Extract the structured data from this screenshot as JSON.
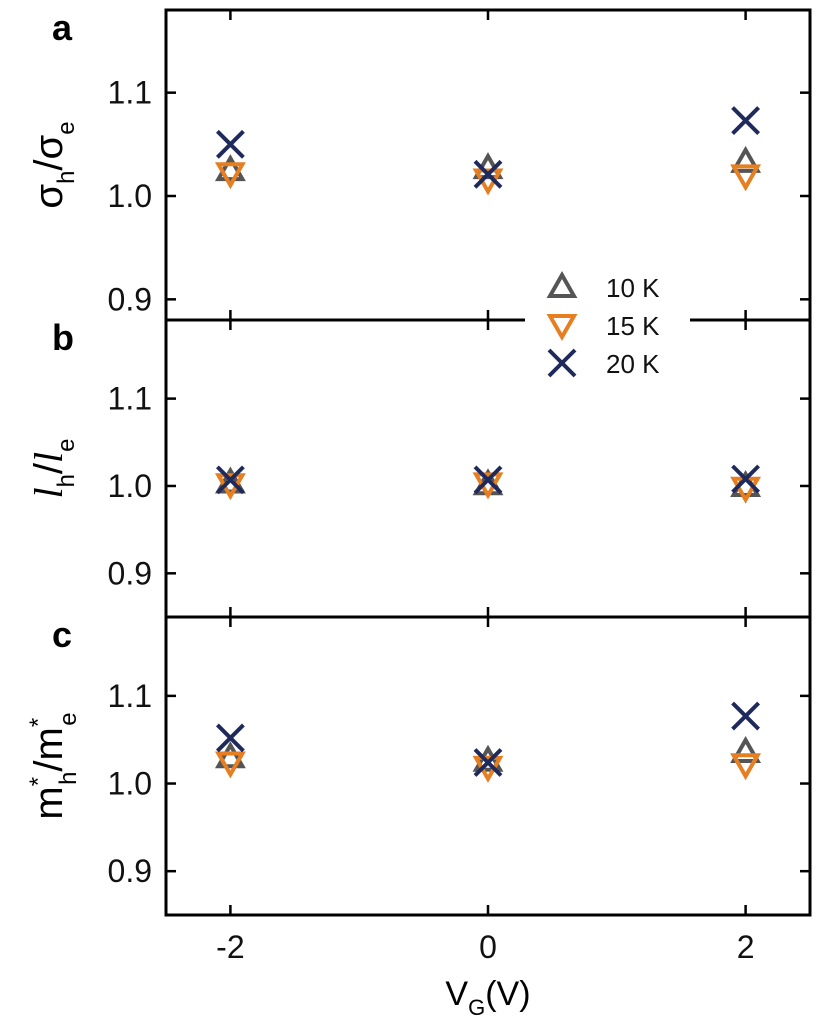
{
  "chart_data": {
    "type": "scatter",
    "xlabel_main": "V",
    "xlabel_sub": "G",
    "xlabel_rest": "(V)",
    "x_ticks": [
      "-2",
      "0",
      "2"
    ],
    "x_tick_values": [
      -2,
      0,
      2
    ],
    "xlim": [
      -2.5,
      2.5
    ],
    "legend_position": "right, between panels a and b",
    "legend": [
      {
        "label": "10 K",
        "marker": "triangle-up",
        "color": "#555555"
      },
      {
        "label": "15 K",
        "marker": "triangle-down",
        "color": "#E67E22"
      },
      {
        "label": "20 K",
        "marker": "x",
        "color": "#1F2A5C"
      }
    ],
    "panels": [
      {
        "letter": "a",
        "ylabel": {
          "base1": "σ",
          "sub1": "h",
          "mid": "/",
          "base2": "σ",
          "sub2": "e"
        },
        "y_ticks": [
          "0.9",
          "1.0",
          "1.1"
        ],
        "y_tick_values": [
          0.9,
          1.0,
          1.1
        ],
        "ylim": [
          0.88,
          1.18
        ],
        "series": [
          {
            "name": "10 K",
            "x": [
              -2,
              0,
              2
            ],
            "y": [
              1.025,
              1.027,
              1.033
            ]
          },
          {
            "name": "15 K",
            "x": [
              -2,
              0,
              2
            ],
            "y": [
              1.022,
              1.016,
              1.02
            ]
          },
          {
            "name": "20 K",
            "x": [
              -2,
              0,
              2
            ],
            "y": [
              1.05,
              1.021,
              1.073
            ]
          }
        ]
      },
      {
        "letter": "b",
        "ylabel": {
          "base1": "l",
          "sub1": "h",
          "mid": "/",
          "base2": "l",
          "sub2": "e"
        },
        "y_ticks": [
          "0.9",
          "1.0",
          "1.1"
        ],
        "y_tick_values": [
          0.9,
          1.0,
          1.1
        ],
        "ylim": [
          0.85,
          1.19
        ],
        "series": [
          {
            "name": "10 K",
            "x": [
              -2,
              0,
              2
            ],
            "y": [
              1.004,
              1.002,
              1.0
            ]
          },
          {
            "name": "15 K",
            "x": [
              -2,
              0,
              2
            ],
            "y": [
              1.002,
              1.003,
              0.998
            ]
          },
          {
            "name": "20 K",
            "x": [
              -2,
              0,
              2
            ],
            "y": [
              1.007,
              1.007,
              1.008
            ]
          }
        ]
      },
      {
        "letter": "c",
        "ylabel": {
          "base1": "m",
          "sup1": "*",
          "sub1": "h",
          "mid": "/",
          "base2": "m",
          "sup2": "*",
          "sub2": "e"
        },
        "y_ticks": [
          "0.9",
          "1.0",
          "1.1"
        ],
        "y_tick_values": [
          0.9,
          1.0,
          1.1
        ],
        "ylim": [
          0.85,
          1.19
        ],
        "series": [
          {
            "name": "10 K",
            "x": [
              -2,
              0,
              2
            ],
            "y": [
              1.03,
              1.026,
              1.036
            ]
          },
          {
            "name": "15 K",
            "x": [
              -2,
              0,
              2
            ],
            "y": [
              1.024,
              1.019,
              1.022
            ]
          },
          {
            "name": "20 K",
            "x": [
              -2,
              0,
              2
            ],
            "y": [
              1.052,
              1.024,
              1.077
            ]
          }
        ]
      }
    ]
  }
}
